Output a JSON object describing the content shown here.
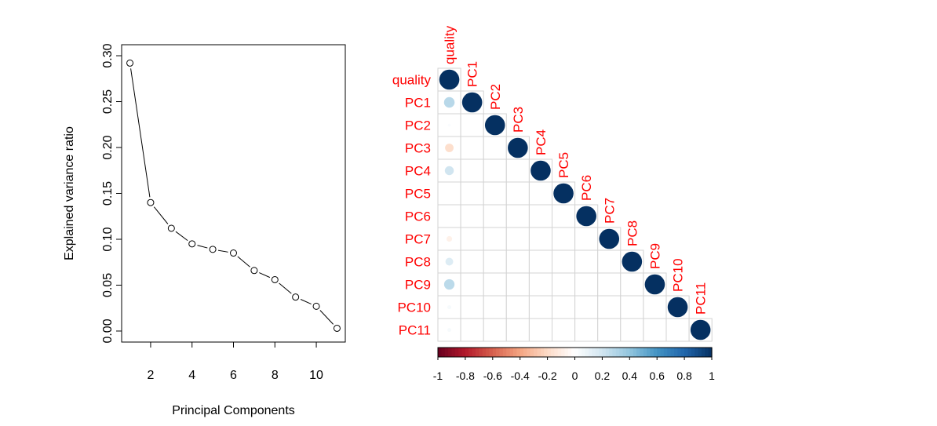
{
  "chart_data": [
    {
      "type": "line",
      "xlabel": "Principal Components",
      "ylabel": "Explained variance ratio",
      "xlim": [
        0.6,
        11.4
      ],
      "ylim": [
        -0.012,
        0.312
      ],
      "x_ticks": [
        2,
        4,
        6,
        8,
        10
      ],
      "y_ticks": [
        0.0,
        0.05,
        0.1,
        0.15,
        0.2,
        0.25,
        0.3
      ],
      "y_tick_labels": [
        "0.00",
        "0.05",
        "0.10",
        "0.15",
        "0.20",
        "0.25",
        "0.30"
      ],
      "x": [
        1,
        2,
        3,
        4,
        5,
        6,
        7,
        8,
        9,
        10,
        11
      ],
      "values": [
        0.292,
        0.14,
        0.112,
        0.095,
        0.089,
        0.085,
        0.066,
        0.056,
        0.037,
        0.027,
        0.003
      ],
      "line_style": "dashed-with-gaps",
      "marker": "open-circle"
    },
    {
      "type": "heatmap",
      "style": "correlation-circles-lower-triangle",
      "variables": [
        "quality",
        "PC1",
        "PC2",
        "PC3",
        "PC4",
        "PC5",
        "PC6",
        "PC7",
        "PC8",
        "PC9",
        "PC10",
        "PC11"
      ],
      "quality_correlations": [
        1.0,
        0.28,
        0.02,
        -0.18,
        0.2,
        0.0,
        0.0,
        -0.08,
        0.15,
        0.27,
        0.04,
        0.04
      ],
      "pc_pairwise_correlation": 0.0,
      "diagonal": 1.0,
      "colorbar": {
        "range": [
          -1,
          1
        ],
        "ticks": [
          "-1",
          "-0.8",
          "-0.6",
          "-0.4",
          "-0.2",
          "0",
          "0.2",
          "0.4",
          "0.6",
          "0.8",
          "1"
        ],
        "low_color": "#67001F",
        "mid_color": "#FFFFFF",
        "high_color": "#053061"
      },
      "label_color": "#FF0000",
      "grid": true
    }
  ]
}
